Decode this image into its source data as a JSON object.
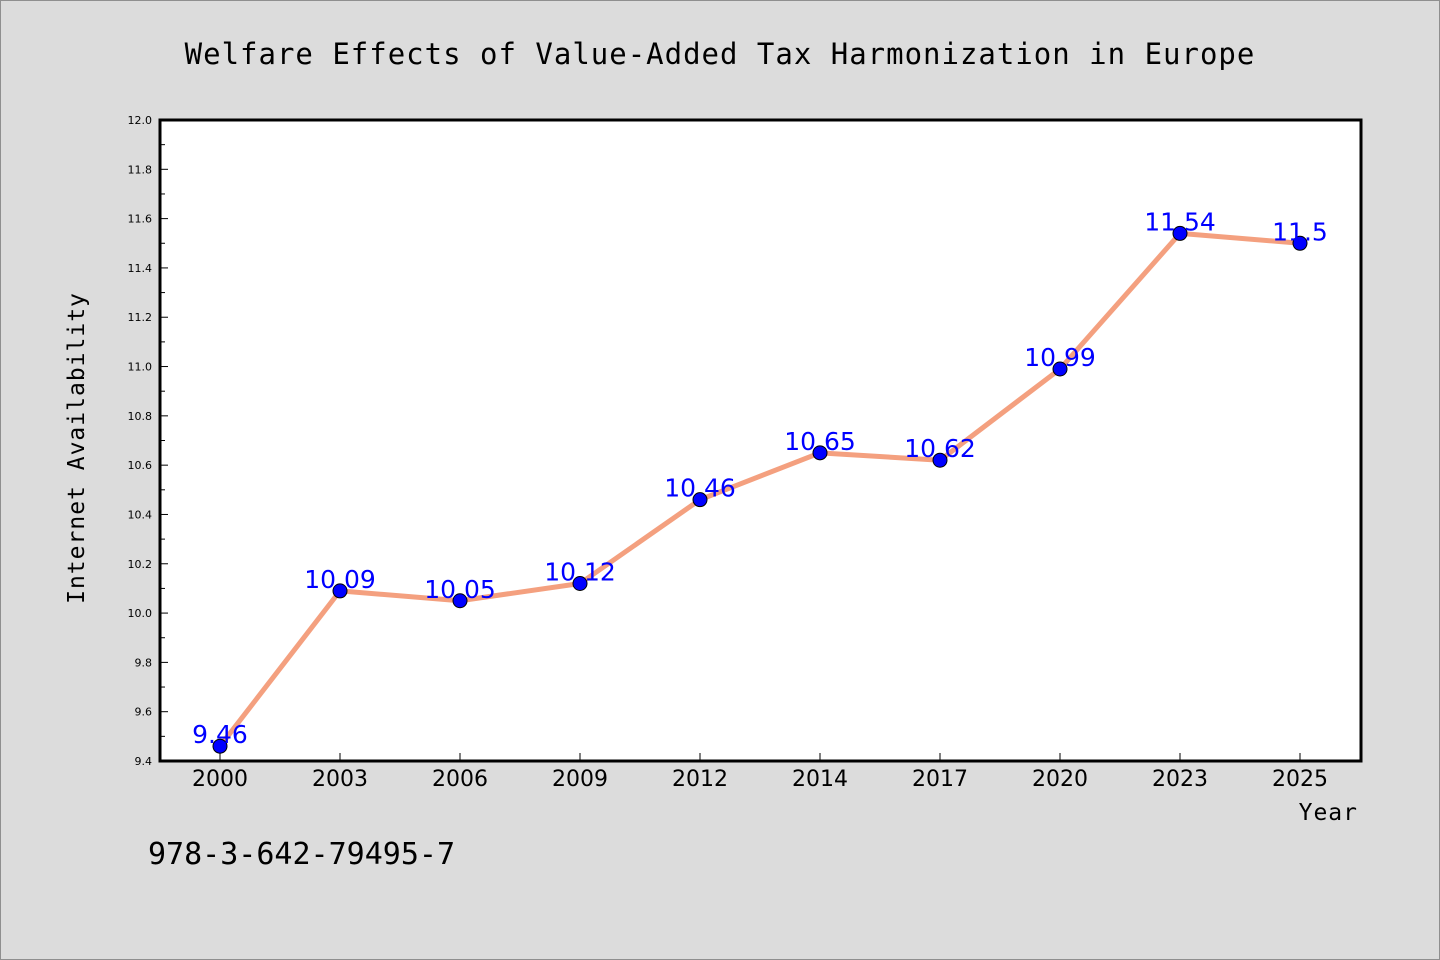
{
  "chart_data": {
    "type": "line",
    "title": "Welfare Effects of Value-Added Tax Harmonization in Europe",
    "xlabel": "Year",
    "ylabel": "Internet Availability",
    "categories": [
      "2000",
      "2003",
      "2006",
      "2009",
      "2012",
      "2014",
      "2017",
      "2020",
      "2023",
      "2025"
    ],
    "values": [
      9.46,
      10.09,
      10.05,
      10.12,
      10.46,
      10.65,
      10.62,
      10.99,
      11.54,
      11.5
    ],
    "data_labels": [
      "9.46",
      "10.09",
      "10.05",
      "10.12",
      "10.46",
      "10.65",
      "10.62",
      "10.99",
      "11.54",
      "11.5"
    ],
    "ylim": [
      9.4,
      12.0
    ],
    "yticks": [
      "9.4",
      "9.6",
      "9.8",
      "10.0",
      "10.2",
      "10.4",
      "10.6",
      "10.8",
      "11.0",
      "11.2",
      "11.4",
      "11.6",
      "11.8",
      "12.0"
    ],
    "grid": false,
    "legend": "none",
    "colors": {
      "line": "#f4a07f",
      "marker": "#0000ff",
      "label": "#0000ff",
      "background": "#dcdcdc",
      "plot_area": "#ffffff"
    }
  },
  "footer_text": "978-3-642-79495-7"
}
